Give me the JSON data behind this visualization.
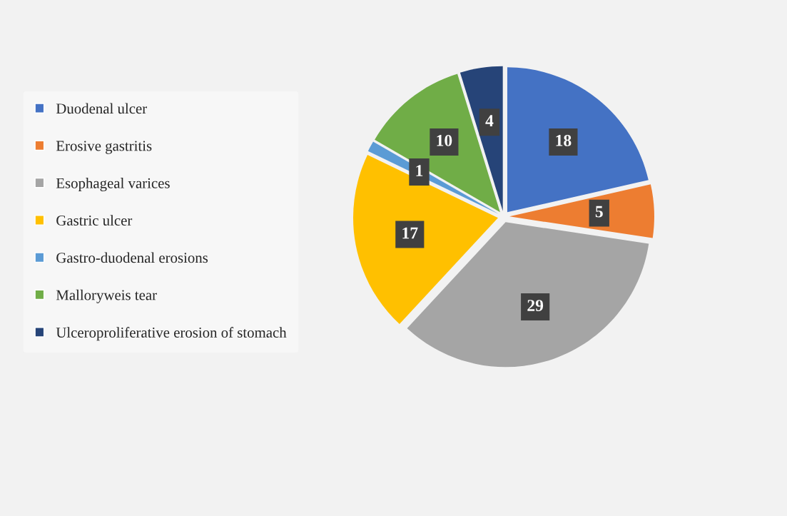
{
  "chart_data": {
    "type": "pie",
    "categories": [
      "Duodenal ulcer",
      "Erosive gastritis",
      "Esophageal varices",
      "Gastric ulcer",
      "Gastro-duodenal erosions",
      "Malloryweis tear",
      "Ulceroproliferative erosion of stomach"
    ],
    "values": [
      18,
      5,
      29,
      17,
      1,
      10,
      4
    ],
    "colors": [
      "#4472c4",
      "#ed7d31",
      "#a5a5a5",
      "#ffc000",
      "#5b9bd5",
      "#70ad47",
      "#264478"
    ],
    "data_labels": true,
    "legend": "left"
  }
}
